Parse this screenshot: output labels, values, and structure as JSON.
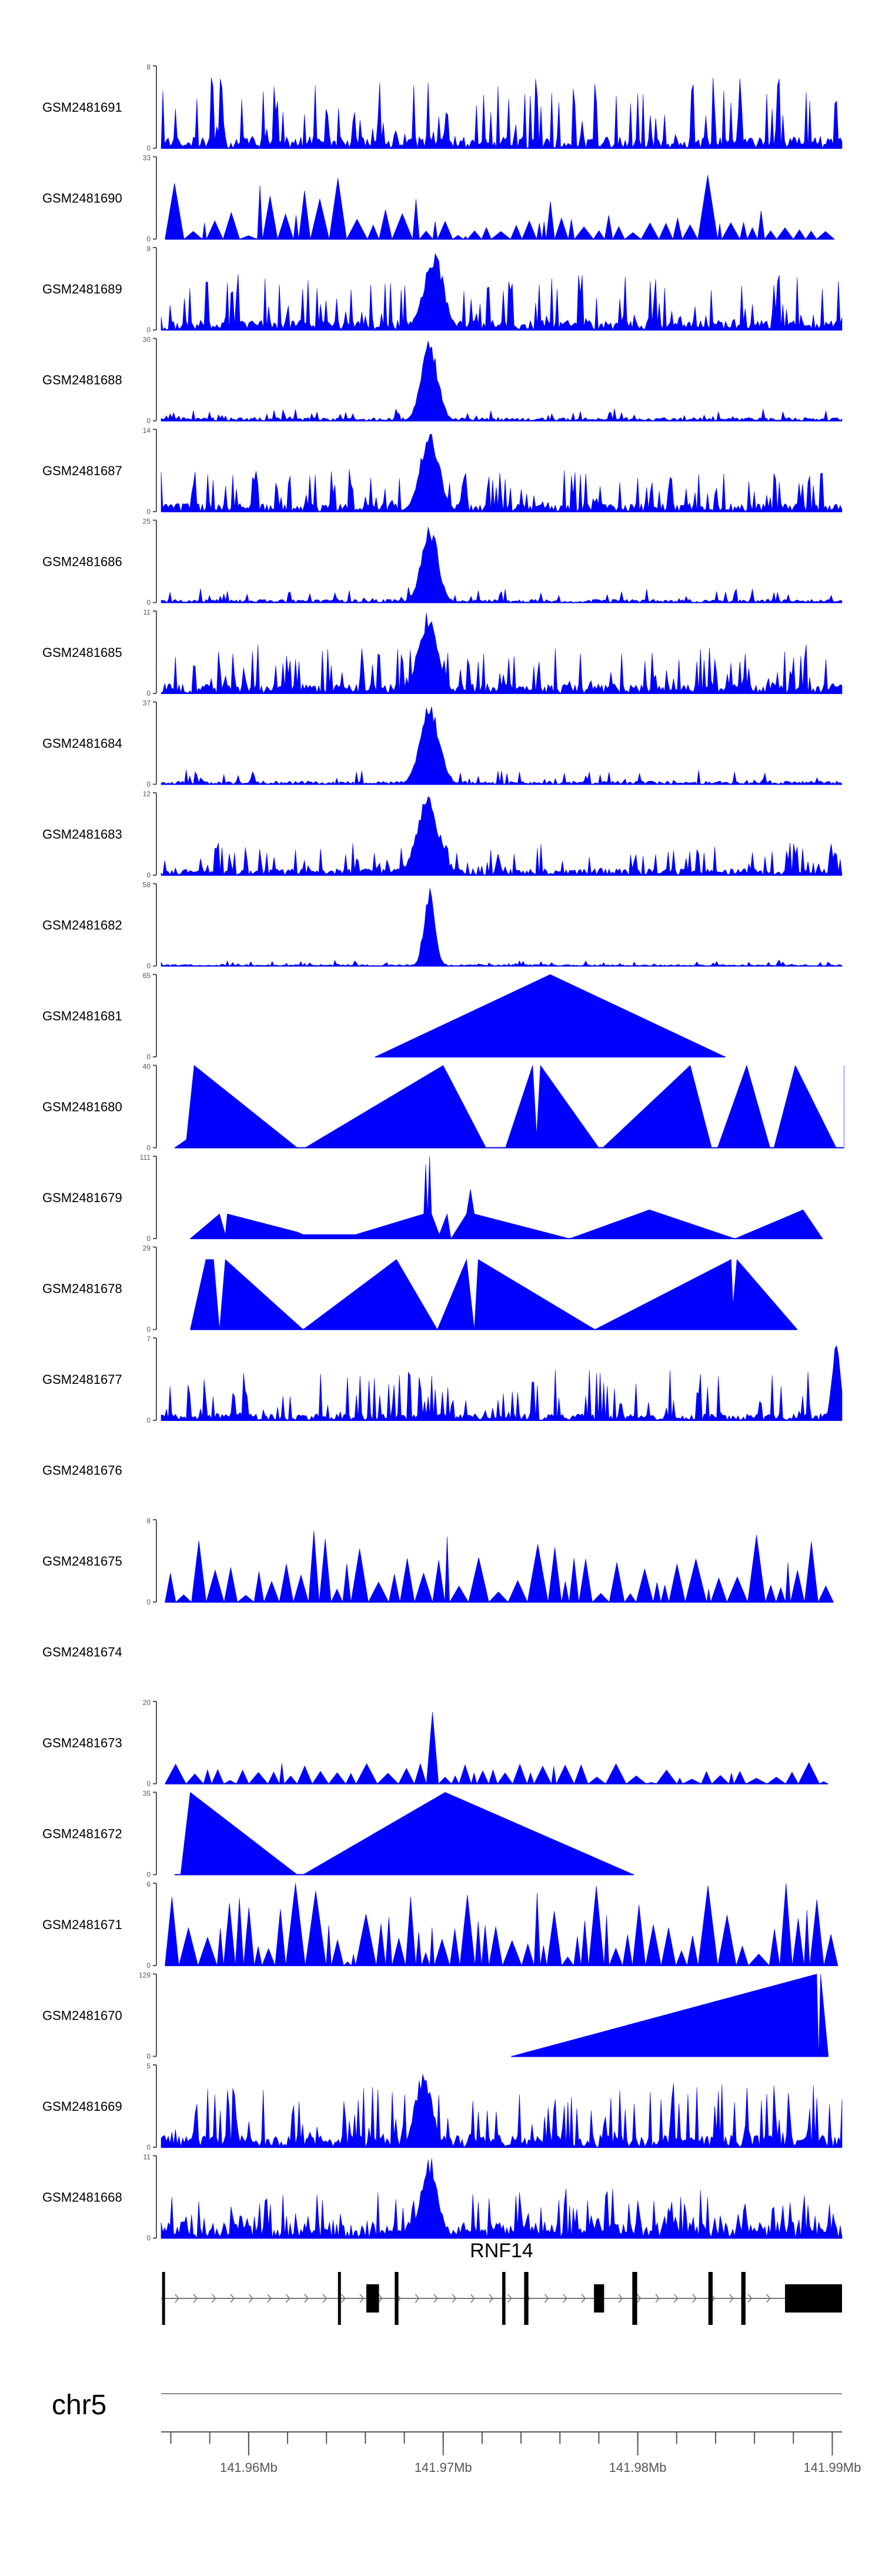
{
  "chart_data": {
    "type": "area",
    "title": "",
    "chromosome": "chr5",
    "xlim": [
      141.9555,
      141.9905
    ],
    "x_ticks": [
      {
        "value": 141.96,
        "label": "141.96Mb"
      },
      {
        "value": 141.97,
        "label": "141.97Mb"
      },
      {
        "value": 141.98,
        "label": "141.98Mb"
      },
      {
        "value": 141.99,
        "label": "141.99Mb"
      }
    ],
    "series": [
      {
        "name": "GSM2481691",
        "ymax": 8,
        "pattern": "noise",
        "base": 0.15,
        "amp": 0.75,
        "peak": null
      },
      {
        "name": "GSM2481690",
        "ymax": 33,
        "pattern": "sparse",
        "base": 0.1,
        "amp": 0.85,
        "peak": null
      },
      {
        "name": "GSM2481689",
        "ymax": 9,
        "pattern": "noise",
        "base": 0.12,
        "amp": 0.6,
        "peak": {
          "x": 141.9695,
          "h": 1.0,
          "w": 0.0007
        }
      },
      {
        "name": "GSM2481688",
        "ymax": 30,
        "pattern": "flat",
        "base": 0.04,
        "amp": 0.12,
        "peak": {
          "x": 141.9693,
          "h": 1.0,
          "w": 0.0006
        }
      },
      {
        "name": "GSM2481687",
        "ymax": 14,
        "pattern": "noise",
        "base": 0.1,
        "amp": 0.45,
        "peak": {
          "x": 141.9693,
          "h": 1.0,
          "w": 0.0007
        }
      },
      {
        "name": "GSM2481686",
        "ymax": 25,
        "pattern": "flat",
        "base": 0.04,
        "amp": 0.15,
        "peak": {
          "x": 141.9693,
          "h": 1.0,
          "w": 0.0006
        }
      },
      {
        "name": "GSM2481685",
        "ymax": 11,
        "pattern": "noise",
        "base": 0.12,
        "amp": 0.5,
        "peak": {
          "x": 141.9692,
          "h": 1.0,
          "w": 0.0007
        }
      },
      {
        "name": "GSM2481684",
        "ymax": 37,
        "pattern": "flat",
        "base": 0.04,
        "amp": 0.15,
        "peak": {
          "x": 141.9693,
          "h": 1.0,
          "w": 0.0007
        }
      },
      {
        "name": "GSM2481683",
        "ymax": 12,
        "pattern": "noise",
        "base": 0.08,
        "amp": 0.35,
        "peak": {
          "x": 141.9692,
          "h": 1.0,
          "w": 0.0008
        }
      },
      {
        "name": "GSM2481682",
        "ymax": 58,
        "pattern": "flat",
        "base": 0.02,
        "amp": 0.06,
        "peak": {
          "x": 141.9693,
          "h": 1.0,
          "w": 0.0004
        }
      },
      {
        "name": "GSM2481681",
        "ymax": 65,
        "pattern": "poly",
        "points": [
          [
            141.9665,
            0
          ],
          [
            141.9755,
            1.0
          ],
          [
            141.9845,
            0
          ]
        ]
      },
      {
        "name": "GSM2481680",
        "ymax": 40,
        "pattern": "poly",
        "points": [
          [
            141.9562,
            0
          ],
          [
            141.9568,
            0.1
          ],
          [
            141.9572,
            1.0
          ],
          [
            141.9625,
            0
          ],
          [
            141.9629,
            0
          ],
          [
            141.97,
            1.0
          ],
          [
            141.9722,
            0
          ],
          [
            141.9732,
            0
          ],
          [
            141.9746,
            1.0
          ],
          [
            141.9748,
            0.15
          ],
          [
            141.975,
            1.0
          ],
          [
            141.978,
            0
          ],
          [
            141.9782,
            0
          ],
          [
            141.9827,
            1.0
          ],
          [
            141.9838,
            0
          ],
          [
            141.9841,
            0
          ],
          [
            141.9856,
            1.0
          ],
          [
            141.9868,
            0
          ],
          [
            141.987,
            0
          ],
          [
            141.9881,
            1.0
          ],
          [
            141.9902,
            0
          ],
          [
            141.9906,
            0
          ],
          [
            141.9906,
            1.0
          ]
        ]
      },
      {
        "name": "GSM2481679",
        "ymax": 111,
        "pattern": "poly",
        "points": [
          [
            141.957,
            0
          ],
          [
            141.9585,
            0.3
          ],
          [
            141.9588,
            0.05
          ],
          [
            141.9589,
            0.3
          ],
          [
            141.9625,
            0.08
          ],
          [
            141.9628,
            0.05
          ],
          [
            141.9655,
            0.05
          ],
          [
            141.969,
            0.3
          ],
          [
            141.9691,
            0.9
          ],
          [
            141.9692,
            0.3
          ],
          [
            141.9693,
            1.0
          ],
          [
            141.9694,
            0.3
          ],
          [
            141.9698,
            0.05
          ],
          [
            141.9702,
            0.3
          ],
          [
            141.9704,
            0.0
          ],
          [
            141.9712,
            0.3
          ],
          [
            141.9714,
            0.6
          ],
          [
            141.9716,
            0.3
          ],
          [
            141.9765,
            0.0
          ],
          [
            141.9806,
            0.35
          ],
          [
            141.985,
            0.0
          ],
          [
            141.9885,
            0.35
          ],
          [
            141.9895,
            0.0
          ]
        ]
      },
      {
        "name": "GSM2481678",
        "ymax": 29,
        "pattern": "poly",
        "points": [
          [
            141.957,
            0
          ],
          [
            141.9578,
            0.85
          ],
          [
            141.9582,
            0.85
          ],
          [
            141.9585,
            0.0
          ],
          [
            141.9588,
            0.85
          ],
          [
            141.9628,
            0
          ],
          [
            141.9676,
            0.85
          ],
          [
            141.9697,
            0
          ],
          [
            141.9712,
            0.85
          ],
          [
            141.9716,
            0
          ],
          [
            141.9718,
            0.85
          ],
          [
            141.9778,
            0
          ],
          [
            141.9848,
            0.85
          ],
          [
            141.9849,
            0.3
          ],
          [
            141.9851,
            0.85
          ],
          [
            141.9882,
            0
          ]
        ]
      },
      {
        "name": "GSM2481677",
        "ymax": 7,
        "pattern": "noise",
        "base": 0.08,
        "amp": 0.55,
        "peak": {
          "x": 141.9902,
          "h": 1.0,
          "w": 0.0003
        }
      },
      {
        "name": "GSM2481676",
        "ymax": null,
        "pattern": "empty"
      },
      {
        "name": "GSM2481675",
        "ymax": 8,
        "pattern": "sparse",
        "base": 0.2,
        "amp": 0.75,
        "peak": null
      },
      {
        "name": "GSM2481674",
        "ymax": null,
        "pattern": "empty"
      },
      {
        "name": "GSM2481673",
        "ymax": 20,
        "pattern": "sparse",
        "base": 0.1,
        "amp": 0.25,
        "peak": {
          "x": 141.9693,
          "h": 1.0,
          "w": 0.0004
        }
      },
      {
        "name": "GSM2481672",
        "ymax": 35,
        "pattern": "poly",
        "points": [
          [
            141.9562,
            0
          ],
          [
            141.9565,
            0.0
          ],
          [
            141.957,
            1.0
          ],
          [
            141.9625,
            0
          ],
          [
            141.9628,
            0
          ],
          [
            141.9701,
            1.0
          ],
          [
            141.9798,
            0
          ]
        ]
      },
      {
        "name": "GSM2481671",
        "ymax": 6,
        "pattern": "sparse",
        "base": 0.3,
        "amp": 0.85,
        "peak": null
      },
      {
        "name": "GSM2481670",
        "ymax": 129,
        "pattern": "poly",
        "points": [
          [
            141.9735,
            0
          ],
          [
            141.9892,
            1.0
          ],
          [
            141.9893,
            0.0
          ],
          [
            141.9894,
            1.0
          ],
          [
            141.9898,
            0
          ]
        ]
      },
      {
        "name": "GSM2481669",
        "ymax": 5,
        "pattern": "noise",
        "base": 0.15,
        "amp": 0.7,
        "peak": {
          "x": 141.969,
          "h": 0.95,
          "w": 0.0006
        }
      },
      {
        "name": "GSM2481668",
        "ymax": 11,
        "pattern": "noise",
        "base": 0.2,
        "amp": 0.45,
        "peak": {
          "x": 141.9693,
          "h": 1.0,
          "w": 0.0006
        }
      }
    ],
    "gene": {
      "name": "RNF14",
      "strand": "+",
      "tx_start": 141.9555,
      "tx_end": 141.9905,
      "exons": [
        [
          141.95555,
          141.95566
        ],
        [
          141.96459,
          141.96474
        ],
        [
          141.96605,
          141.9667
        ],
        [
          141.96751,
          141.9677
        ],
        [
          141.97303,
          141.9732
        ],
        [
          141.97416,
          141.97438
        ],
        [
          141.97775,
          141.97827
        ],
        [
          141.97972,
          141.97997
        ],
        [
          141.98363,
          141.98385
        ],
        [
          141.98532,
          141.98554
        ],
        [
          141.98757,
          141.9905
        ]
      ]
    },
    "colors": {
      "signal": "#0000ff",
      "axis": "#555555",
      "text": "#000000",
      "exon": "#000000",
      "intron": "#777777",
      "ideogram": "#888888"
    }
  }
}
